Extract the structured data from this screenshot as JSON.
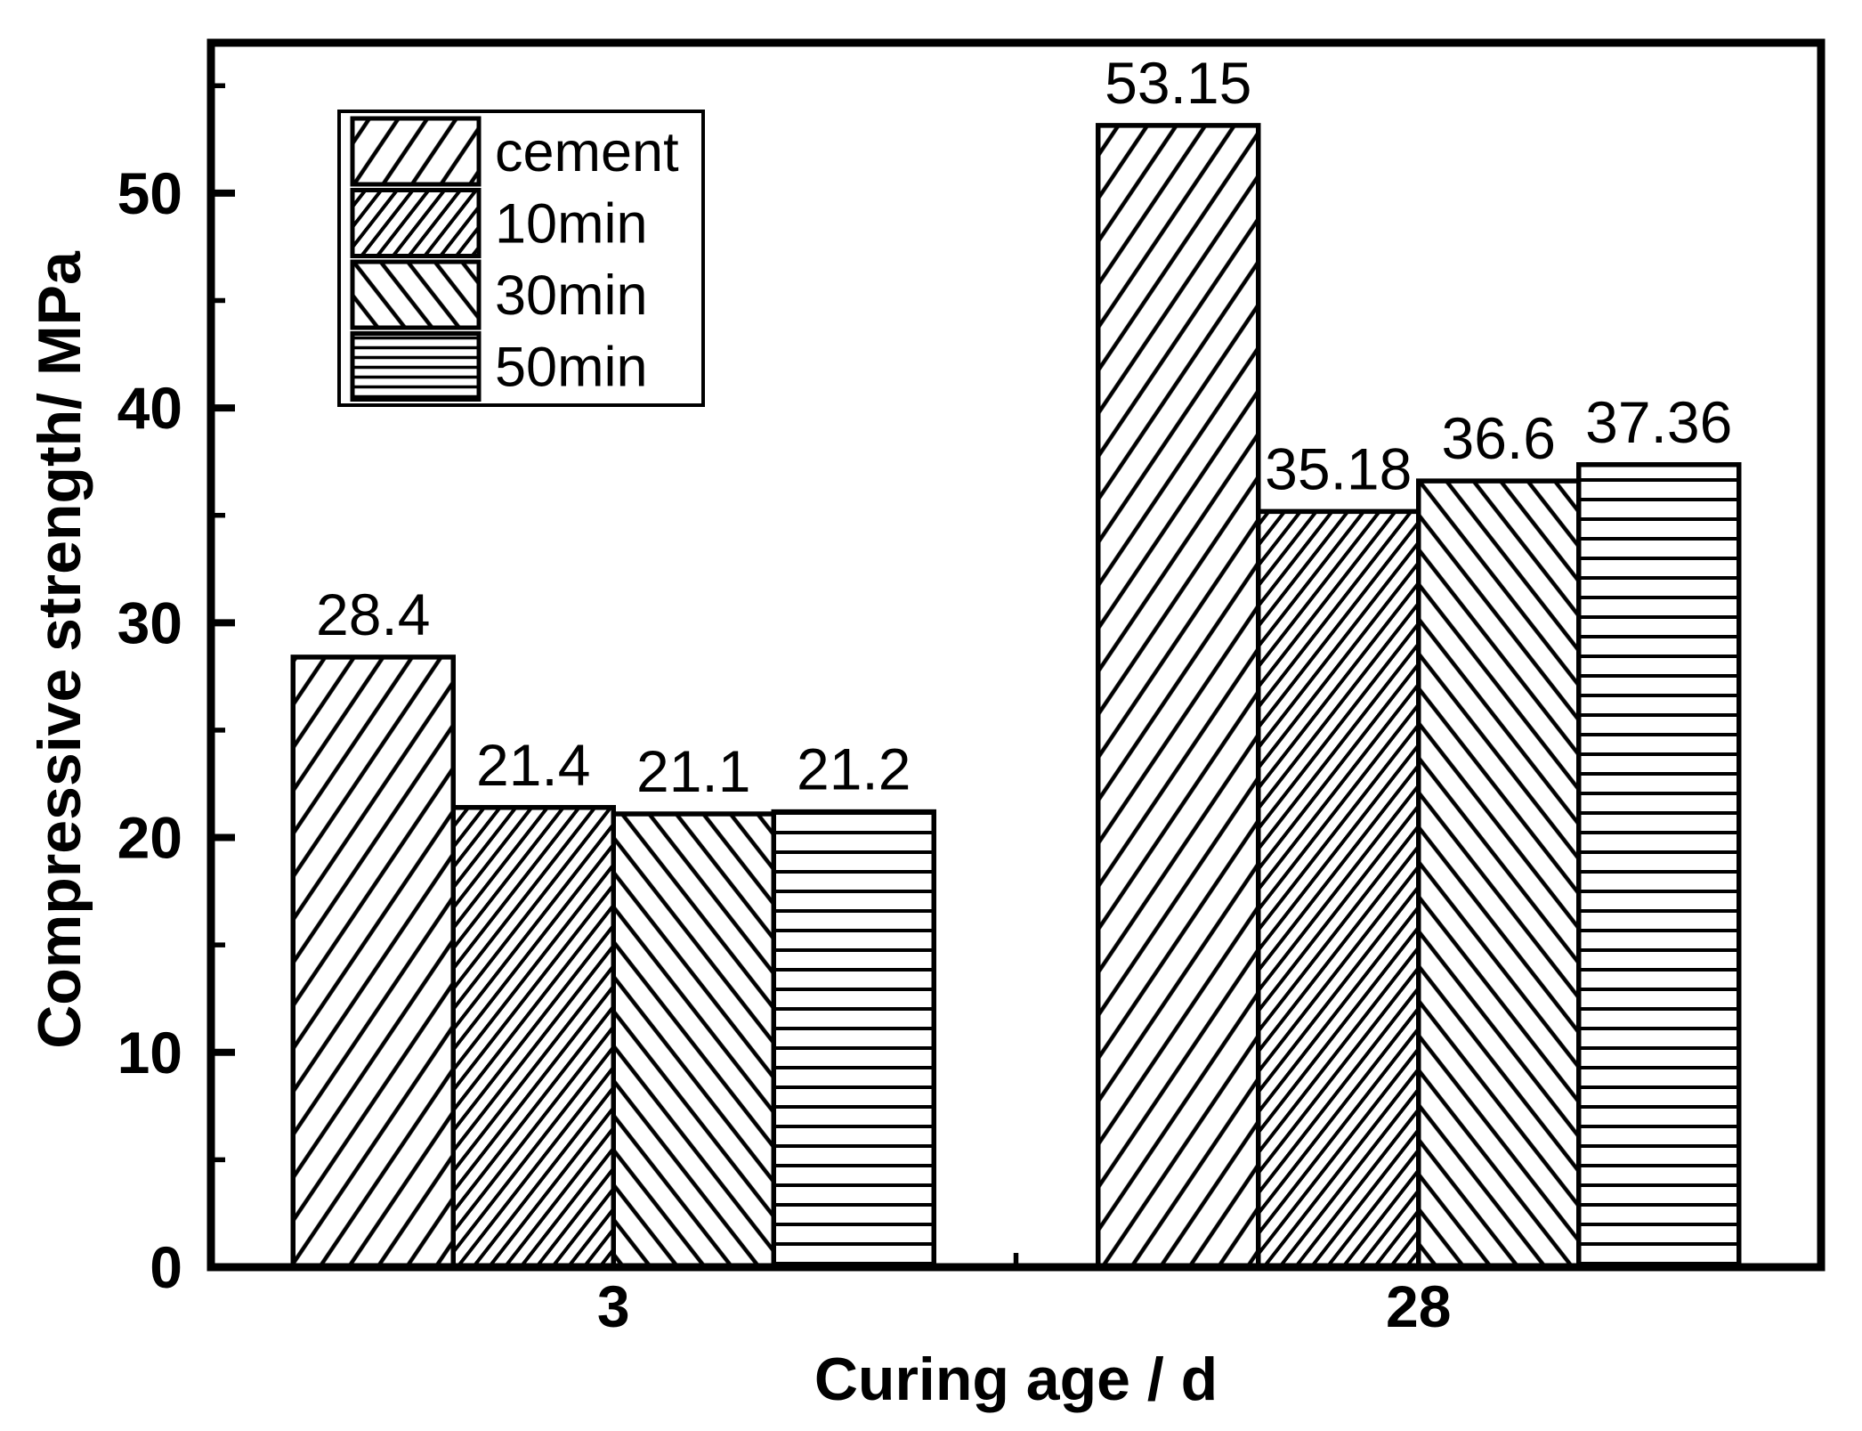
{
  "colors": {
    "background": "#ffffff",
    "ink": "#000000"
  },
  "chart_data": {
    "type": "bar",
    "title": "",
    "xlabel": "Curing age / d",
    "ylabel": "Compressive strength/ MPa",
    "categories": [
      "3",
      "28"
    ],
    "series": [
      {
        "name": "cement",
        "hatch": "diagonal-forward-wide",
        "values": [
          28.4,
          53.15
        ],
        "labels": [
          "28.4",
          "53.15"
        ]
      },
      {
        "name": "10min",
        "hatch": "diagonal-forward-dense",
        "values": [
          21.4,
          35.18
        ],
        "labels": [
          "21.4",
          "35.18"
        ]
      },
      {
        "name": "30min",
        "hatch": "diagonal-backward",
        "values": [
          21.1,
          36.6
        ],
        "labels": [
          "21.1",
          "36.6"
        ]
      },
      {
        "name": "50min",
        "hatch": "horizontal",
        "values": [
          21.2,
          37.36
        ],
        "labels": [
          "21.2",
          "37.36"
        ]
      }
    ],
    "ylim": [
      0,
      57
    ],
    "yticks_major": [
      0,
      10,
      20,
      30,
      40,
      50
    ],
    "yticks_minor": [
      5,
      15,
      25,
      35,
      45,
      55
    ],
    "grid": false,
    "legend": {
      "position": "upper-left"
    },
    "bar_style": "black hatch on white, black outlines"
  }
}
